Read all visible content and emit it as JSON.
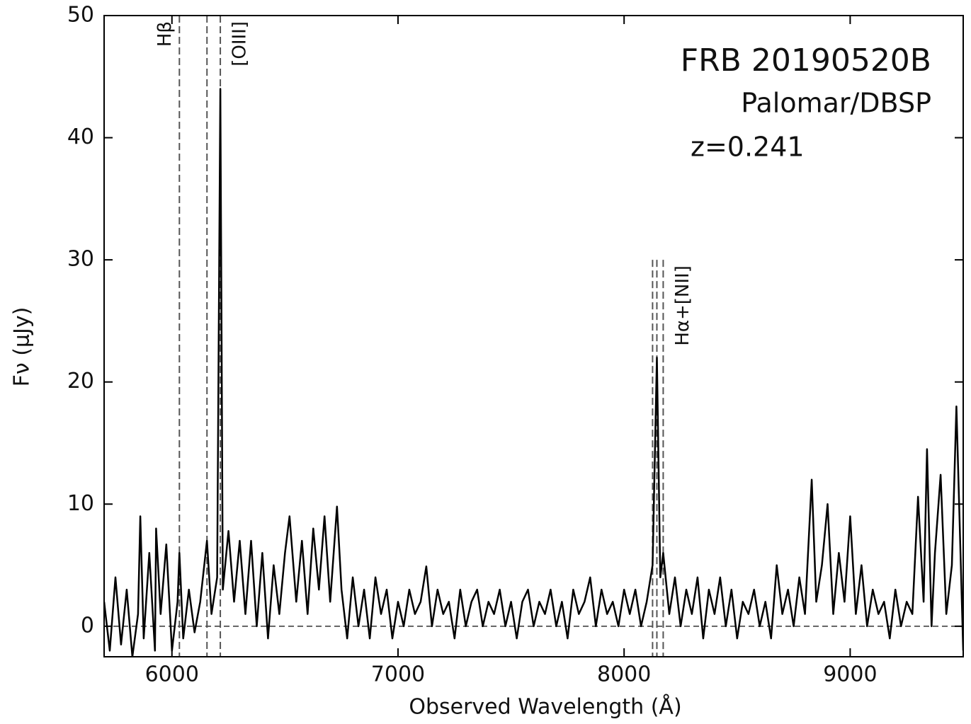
{
  "chart_data": {
    "type": "line",
    "title": "FRB 20190520B",
    "annotations": [
      "Palomar/DBSP",
      "z=0.241"
    ],
    "xlabel": "Observed Wavelength (Å)",
    "ylabel": "Fν (μJy)",
    "xlim": [
      5700,
      9500
    ],
    "ylim": [
      -2.5,
      50
    ],
    "xticks": [
      6000,
      7000,
      8000,
      9000
    ],
    "yticks": [
      0,
      10,
      20,
      30,
      40,
      50
    ],
    "zero_line": 0,
    "markers": [
      {
        "label": "Hβ",
        "x": [
          6033
        ],
        "top": 50
      },
      {
        "label": "[OIII]",
        "x": [
          6155,
          6214
        ],
        "top": 50
      },
      {
        "label": "Hα+[NII]",
        "x": [
          8126,
          8145,
          8173
        ],
        "top": 30
      }
    ],
    "series": [
      {
        "color": "#000000",
        "x": [
          5700,
          5725,
          5750,
          5775,
          5800,
          5825,
          5850,
          5860,
          5875,
          5900,
          5925,
          5930,
          5950,
          5975,
          6000,
          6025,
          6033,
          6050,
          6075,
          6100,
          6125,
          6155,
          6175,
          6200,
          6214,
          6225,
          6250,
          6275,
          6300,
          6325,
          6350,
          6375,
          6400,
          6425,
          6450,
          6475,
          6500,
          6520,
          6550,
          6575,
          6600,
          6625,
          6650,
          6675,
          6700,
          6730,
          6750,
          6775,
          6800,
          6825,
          6850,
          6875,
          6900,
          6925,
          6950,
          6975,
          7000,
          7025,
          7050,
          7075,
          7100,
          7125,
          7150,
          7175,
          7200,
          7225,
          7250,
          7275,
          7300,
          7325,
          7350,
          7375,
          7400,
          7425,
          7450,
          7475,
          7500,
          7525,
          7550,
          7575,
          7600,
          7625,
          7650,
          7675,
          7700,
          7725,
          7750,
          7775,
          7800,
          7825,
          7850,
          7875,
          7900,
          7925,
          7950,
          7975,
          8000,
          8025,
          8050,
          8075,
          8100,
          8126,
          8145,
          8160,
          8173,
          8200,
          8225,
          8250,
          8275,
          8300,
          8325,
          8350,
          8375,
          8400,
          8425,
          8450,
          8475,
          8500,
          8525,
          8550,
          8575,
          8600,
          8625,
          8650,
          8675,
          8700,
          8725,
          8750,
          8775,
          8800,
          8830,
          8850,
          8875,
          8900,
          8925,
          8950,
          8975,
          9000,
          9025,
          9050,
          9075,
          9100,
          9125,
          9150,
          9175,
          9200,
          9225,
          9250,
          9275,
          9300,
          9325,
          9340,
          9360,
          9375,
          9400,
          9425,
          9450,
          9470,
          9500
        ],
        "values": [
          2,
          -2,
          4,
          -1.5,
          3,
          -2.5,
          1,
          9,
          -1,
          6,
          -2,
          8,
          1,
          6.7,
          -2,
          2,
          6,
          -1,
          3,
          -0.5,
          2,
          7,
          1,
          4,
          44,
          3,
          7.8,
          2,
          7,
          1,
          7,
          0,
          6,
          -1,
          5,
          1,
          6,
          9,
          2,
          7,
          1,
          8,
          3,
          9,
          2,
          9.8,
          3,
          -1,
          4,
          0,
          3,
          -1,
          4,
          1,
          3,
          -1,
          2,
          0,
          3,
          1,
          2,
          4.9,
          0,
          3,
          1,
          2,
          -1,
          3,
          0,
          2,
          3,
          0,
          2,
          1,
          3,
          0,
          2,
          -1,
          2,
          3,
          0,
          2,
          1,
          3,
          0,
          2,
          -1,
          3,
          1,
          2,
          4,
          0,
          3,
          1,
          2,
          0,
          3,
          1,
          3,
          0,
          2,
          5,
          22,
          4,
          6,
          1,
          4,
          0,
          3,
          1,
          4,
          -1,
          3,
          1,
          4,
          0,
          3,
          -1,
          2,
          1,
          3,
          0,
          2,
          -1,
          5,
          1,
          3,
          0,
          4,
          1,
          12,
          2,
          5,
          10,
          1,
          6,
          2,
          9,
          1,
          5,
          0,
          3,
          1,
          2,
          -1,
          3,
          0,
          2,
          1,
          10.6,
          2,
          14.5,
          0,
          6,
          12.4,
          1,
          5,
          18,
          -2
        ]
      }
    ]
  }
}
